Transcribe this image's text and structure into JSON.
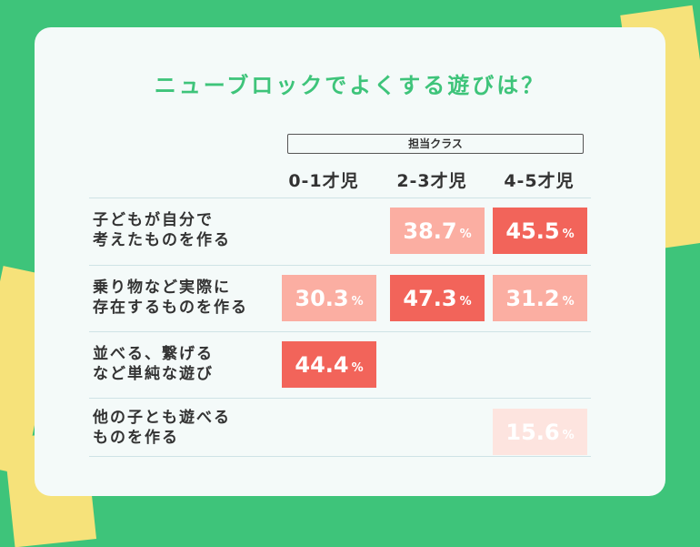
{
  "title": "ニューブロックでよくする遊びは？",
  "header_group": "担当クラス",
  "percent_unit": "%",
  "colors": {
    "background": "#3ec47a",
    "accent_green": "#3ec47a",
    "high": "#f2645a",
    "mid": "#fbaea2",
    "low": "#fde4df"
  },
  "chart_data": {
    "type": "table",
    "title": "ニューブロックでよくする遊びは？",
    "columns_group": "担当クラス",
    "categories": [
      "0-1才児",
      "2-3才児",
      "4-5才児"
    ],
    "rows": [
      {
        "label_lines": [
          "子どもが自分で",
          "考えたものを作る"
        ],
        "values": [
          null,
          38.7,
          45.5
        ]
      },
      {
        "label_lines": [
          "乗り物など実際に",
          "存在するものを作る"
        ],
        "values": [
          30.3,
          47.3,
          31.2
        ]
      },
      {
        "label_lines": [
          "並べる、繋げる",
          "など単純な遊び"
        ],
        "values": [
          44.4,
          null,
          null
        ]
      },
      {
        "label_lines": [
          "他の子とも遊べる",
          "ものを作る"
        ],
        "values": [
          null,
          null,
          15.6
        ]
      }
    ],
    "unit": "%"
  }
}
